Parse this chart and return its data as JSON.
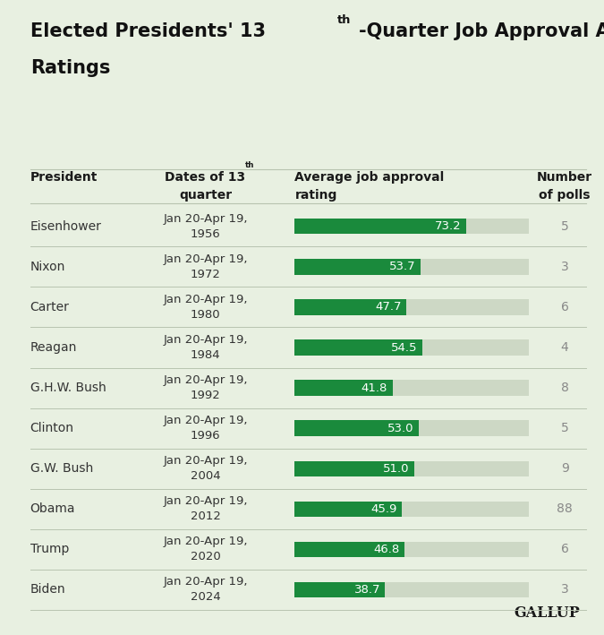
{
  "background_color": "#e8f0e1",
  "bar_bg_color": "#cdd8c5",
  "bar_fill_color": "#1a8a3c",
  "bar_text_color": "#ffffff",
  "title_color": "#111111",
  "header_color": "#1a1a1a",
  "text_color": "#333333",
  "polls_color": "#888888",
  "divider_color": "#b8c4b0",
  "gallup_color": "#1a1a1a",
  "presidents": [
    "Eisenhower",
    "Nixon",
    "Carter",
    "Reagan",
    "G.H.W. Bush",
    "Clinton",
    "G.W. Bush",
    "Obama",
    "Trump",
    "Biden"
  ],
  "dates": [
    "Jan 20-Apr 19,\n1956",
    "Jan 20-Apr 19,\n1972",
    "Jan 20-Apr 19,\n1980",
    "Jan 20-Apr 19,\n1984",
    "Jan 20-Apr 19,\n1992",
    "Jan 20-Apr 19,\n1996",
    "Jan 20-Apr 19,\n2004",
    "Jan 20-Apr 19,\n2012",
    "Jan 20-Apr 19,\n2020",
    "Jan 20-Apr 19,\n2024"
  ],
  "ratings": [
    73.2,
    53.7,
    47.7,
    54.5,
    41.8,
    53.0,
    51.0,
    45.9,
    46.8,
    38.7
  ],
  "polls": [
    "5",
    "3",
    "6",
    "4",
    "8",
    "5",
    "9",
    "88",
    "6",
    "3"
  ],
  "bar_max": 100,
  "title_fontsize": 15,
  "header_fontsize": 10,
  "cell_fontsize": 10,
  "bar_label_fontsize": 9.5
}
